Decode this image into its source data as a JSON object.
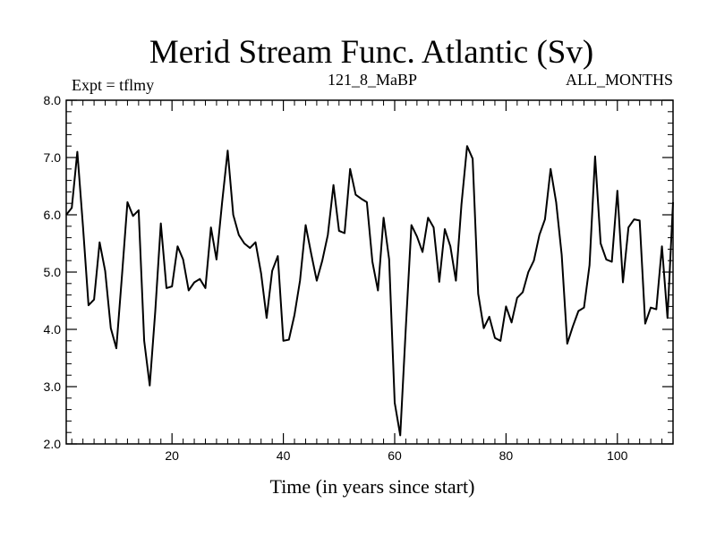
{
  "chart_data": {
    "type": "line",
    "title": "Merid Stream Func. Atlantic (Sv)",
    "subtitle_left": "Expt = tflmy",
    "subtitle_center": "121_8_MaBP",
    "subtitle_right": "ALL_MONTHS",
    "xlabel": "Time (in years since start)",
    "ylabel": "",
    "xlim": [
      1,
      110
    ],
    "ylim": [
      2.0,
      8.0
    ],
    "x_ticks": [
      20,
      40,
      60,
      80,
      100
    ],
    "x_tick_labels": [
      "20",
      "40",
      "60",
      "80",
      "100"
    ],
    "y_ticks": [
      2.0,
      3.0,
      4.0,
      5.0,
      6.0,
      7.0,
      8.0
    ],
    "y_tick_labels": [
      "2.0",
      "3.0",
      "4.0",
      "5.0",
      "6.0",
      "7.0",
      "8.0"
    ],
    "grid": false,
    "series": [
      {
        "name": "Merid Stream Func. Atlantic",
        "color": "#000000",
        "x": [
          1,
          2,
          3,
          4,
          5,
          6,
          7,
          8,
          9,
          10,
          11,
          12,
          13,
          14,
          15,
          16,
          17,
          18,
          19,
          20,
          21,
          22,
          23,
          24,
          25,
          26,
          27,
          28,
          29,
          30,
          31,
          32,
          33,
          34,
          35,
          36,
          37,
          38,
          39,
          40,
          41,
          42,
          43,
          44,
          45,
          46,
          47,
          48,
          49,
          50,
          51,
          52,
          53,
          54,
          55,
          56,
          57,
          58,
          59,
          60,
          61,
          62,
          63,
          64,
          65,
          66,
          67,
          68,
          69,
          70,
          71,
          72,
          73,
          74,
          75,
          76,
          77,
          78,
          79,
          80,
          81,
          82,
          83,
          84,
          85,
          86,
          87,
          88,
          89,
          90,
          91,
          92,
          93,
          94,
          95,
          96,
          97,
          98,
          99,
          100,
          101,
          102,
          103,
          104,
          105,
          106,
          107,
          108,
          109,
          110
        ],
        "values": [
          6.0,
          6.12,
          7.1,
          5.8,
          4.42,
          4.52,
          5.52,
          5.02,
          4.02,
          3.67,
          4.92,
          6.22,
          5.98,
          6.08,
          3.8,
          3.02,
          4.32,
          5.85,
          4.72,
          4.75,
          5.45,
          5.22,
          4.68,
          4.82,
          4.88,
          4.72,
          5.78,
          5.22,
          6.22,
          7.12,
          6.0,
          5.65,
          5.5,
          5.42,
          5.52,
          4.98,
          4.2,
          5.02,
          5.28,
          3.8,
          3.82,
          4.25,
          4.85,
          5.82,
          5.32,
          4.85,
          5.2,
          5.65,
          6.52,
          5.72,
          5.68,
          6.8,
          6.35,
          6.28,
          6.22,
          5.18,
          4.68,
          5.95,
          5.22,
          2.72,
          2.15,
          4.02,
          5.82,
          5.62,
          5.35,
          5.95,
          5.78,
          4.83,
          5.75,
          5.45,
          4.85,
          6.18,
          7.2,
          6.98,
          4.62,
          4.02,
          4.22,
          3.85,
          3.8,
          4.4,
          4.12,
          4.55,
          4.65,
          5.0,
          5.2,
          5.65,
          5.92,
          6.8,
          6.22,
          5.3,
          3.75,
          4.05,
          4.32,
          4.38,
          5.12,
          7.02,
          5.5,
          5.22,
          5.18,
          6.42,
          4.82,
          5.78,
          5.92,
          5.9,
          4.1,
          4.38,
          4.35,
          5.45,
          4.2,
          6.22
        ]
      }
    ]
  }
}
